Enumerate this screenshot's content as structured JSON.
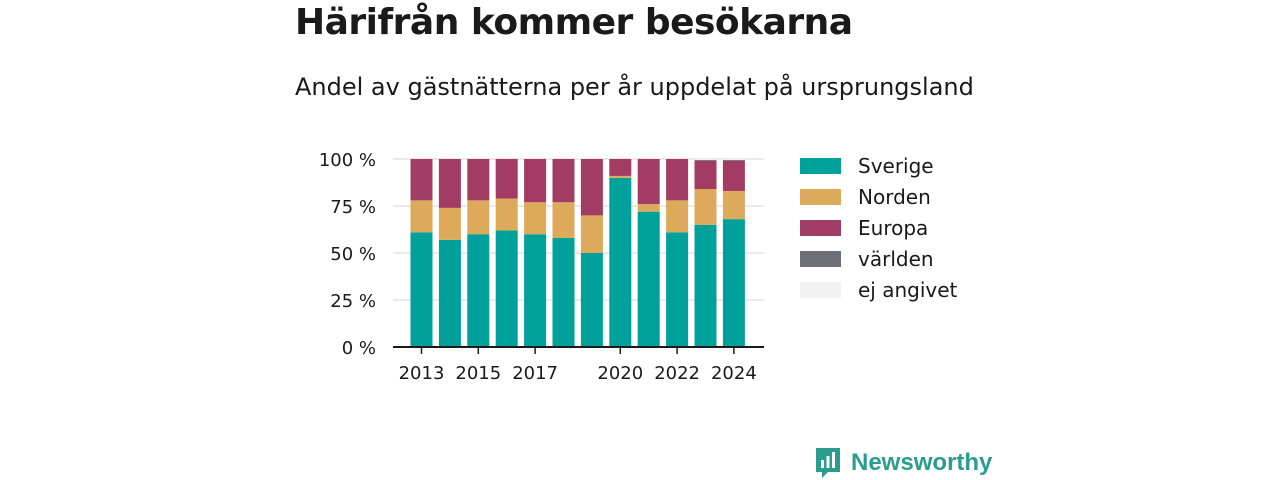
{
  "title": "Härifrån kommer besökarna",
  "subtitle": "Andel av gästnätterna per år uppdelat på ursprungsland",
  "brand": {
    "name": "Newsworthy",
    "color": "#2a9d8f"
  },
  "colors": {
    "Sverige": "#00a19a",
    "Norden": "#dcaa5a",
    "Europa": "#a33c64",
    "världen": "#6f6f78",
    "ej angivet": "#f2f2f2"
  },
  "chart_data": {
    "type": "bar",
    "stacked": true,
    "categories": [
      2013,
      2014,
      2015,
      2016,
      2017,
      2018,
      2019,
      2020,
      2021,
      2022,
      2023,
      2024
    ],
    "x_tick_labels": [
      "2013",
      "2015",
      "2017",
      "2020",
      "2022",
      "2024"
    ],
    "x_tick_values": [
      2013,
      2015,
      2017,
      2020,
      2022,
      2024
    ],
    "y_ticks": [
      0,
      25,
      50,
      75,
      100
    ],
    "y_tick_labels": [
      "0 %",
      "25 %",
      "50 %",
      "75 %",
      "100 %"
    ],
    "ylim": [
      0,
      100
    ],
    "grid": true,
    "legend_position": "right",
    "series": [
      {
        "name": "Sverige",
        "values": [
          61,
          57,
          60,
          62,
          60,
          58,
          50,
          90,
          72,
          61,
          65,
          68
        ]
      },
      {
        "name": "Norden",
        "values": [
          17,
          17,
          18,
          17,
          17,
          19,
          20,
          1,
          4,
          17,
          19,
          15
        ]
      },
      {
        "name": "Europa",
        "values": [
          22,
          26,
          22,
          21,
          23,
          23,
          30,
          9,
          24,
          22,
          15,
          16
        ]
      },
      {
        "name": "världen",
        "values": [
          0,
          0,
          0,
          0,
          0,
          0,
          0,
          0,
          0,
          0,
          0.5,
          0.5
        ]
      },
      {
        "name": "ej angivet",
        "values": [
          0,
          0,
          0,
          0,
          0,
          0,
          0,
          0,
          0,
          0,
          0.5,
          0.5
        ]
      }
    ]
  }
}
